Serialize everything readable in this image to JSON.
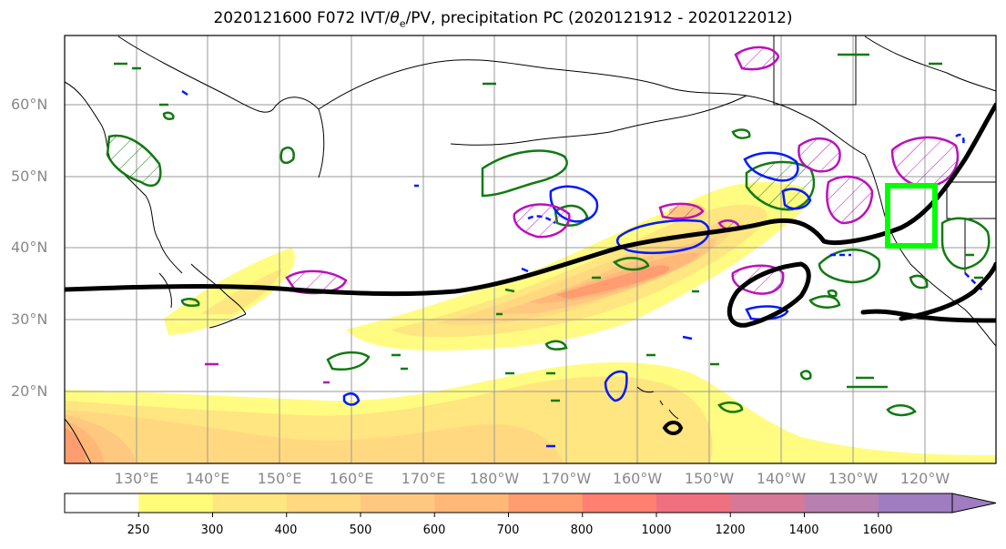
{
  "title": {
    "prefix": "2020121600 F072 IVT/",
    "theta": "θ",
    "theta_sub": "e",
    "suffix": "/PV, precipitation PC (2020121912 - 2020122012)"
  },
  "axes": {
    "lat_labels": [
      "60°N",
      "50°N",
      "40°N",
      "30°N",
      "20°N"
    ],
    "lon_labels": [
      "130°E",
      "140°E",
      "150°E",
      "160°E",
      "170°E",
      "180°W",
      "170°W",
      "160°W",
      "150°W",
      "140°W",
      "130°W",
      "120°W"
    ]
  },
  "colorbar": {
    "ticks": [
      "250",
      "300",
      "400",
      "500",
      "600",
      "700",
      "800",
      "1000",
      "1200",
      "1400",
      "1600"
    ],
    "colors": [
      "#ffffff",
      "#fffc7a",
      "#ffe680",
      "#ffd880",
      "#ffc880",
      "#ffb878",
      "#ff9c70",
      "#ff8070",
      "#f07080",
      "#d87898",
      "#b880b0",
      "#a07cc0"
    ]
  },
  "colors": {
    "ivt_fill": "#ffd46a",
    "theta_e_contour": "#000000",
    "pv_green": "#117a11",
    "pv_blue": "#0019ff",
    "pv_magenta": "#bb10bb",
    "target_box": "#00ff00"
  }
}
